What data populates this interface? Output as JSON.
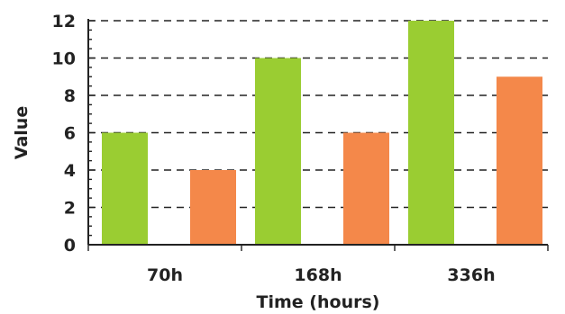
{
  "chart_data": {
    "type": "bar",
    "categories": [
      "70h",
      "168h",
      "336h"
    ],
    "series": [
      {
        "values": [
          6,
          10,
          12
        ],
        "color": "#9ACD32"
      },
      {
        "values": [
          4,
          6,
          9
        ],
        "color": "#F4884A"
      }
    ],
    "xlabel": "Time (hours)",
    "ylabel": "Value",
    "ylim": [
      0,
      12
    ],
    "yticks": [
      0,
      2,
      4,
      6,
      8,
      10,
      12
    ],
    "grid": true,
    "grid_style": "dashed-horizontal"
  }
}
